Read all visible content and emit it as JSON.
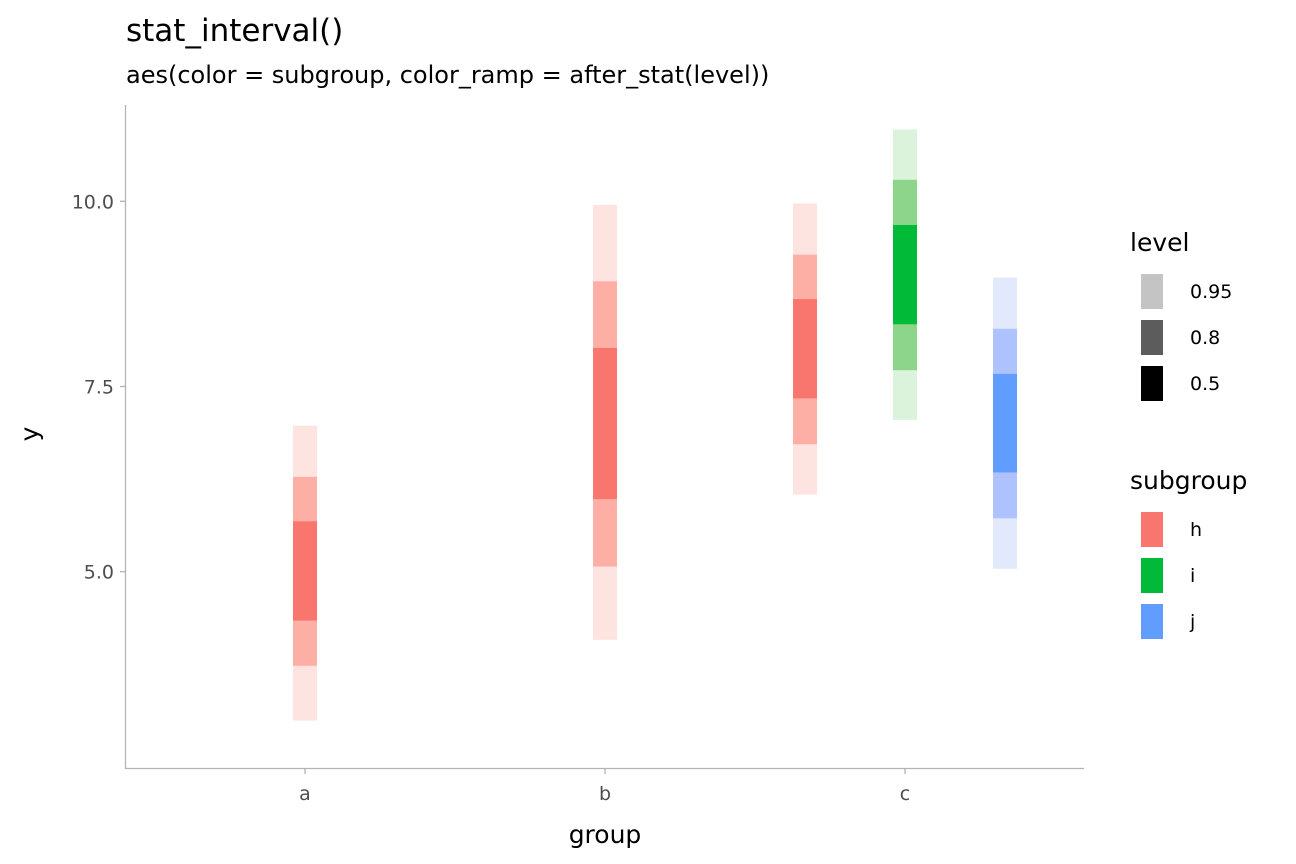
{
  "chart_data": {
    "type": "interval",
    "title": "stat_interval()",
    "subtitle": "aes(color = subgroup, color_ramp = after_stat(level))",
    "xlabel": "group",
    "ylabel": "y",
    "categories": [
      "a",
      "b",
      "c"
    ],
    "subgroups": [
      "h",
      "i",
      "j"
    ],
    "ylim": [
      2.35,
      11.3
    ],
    "yticks": [
      5.0,
      7.5,
      10.0
    ],
    "ytick_labels": [
      "5.0",
      "7.5",
      "10.0"
    ],
    "grid": false,
    "levels": [
      0.95,
      0.8,
      0.5
    ],
    "level_labels": [
      "0.95",
      "0.8",
      "0.5"
    ],
    "intervals": [
      {
        "group": "a",
        "subgroup": "h",
        "ranges": {
          "0.95": [
            2.99,
            6.97
          ],
          "0.8": [
            3.73,
            6.28
          ],
          "0.5": [
            4.34,
            5.68
          ]
        }
      },
      {
        "group": "b",
        "subgroup": "h",
        "ranges": {
          "0.95": [
            4.08,
            9.95
          ],
          "0.8": [
            5.07,
            8.92
          ],
          "0.5": [
            5.98,
            8.02
          ]
        }
      },
      {
        "group": "c",
        "subgroup": "h",
        "ranges": {
          "0.95": [
            6.04,
            9.97
          ],
          "0.8": [
            6.72,
            9.28
          ],
          "0.5": [
            7.34,
            8.68
          ]
        }
      },
      {
        "group": "c",
        "subgroup": "i",
        "ranges": {
          "0.95": [
            7.05,
            10.97
          ],
          "0.8": [
            7.72,
            10.29
          ],
          "0.5": [
            8.34,
            9.68
          ]
        }
      },
      {
        "group": "c",
        "subgroup": "j",
        "ranges": {
          "0.95": [
            5.04,
            8.97
          ],
          "0.8": [
            5.72,
            8.28
          ],
          "0.5": [
            6.34,
            7.67
          ]
        }
      }
    ],
    "legend": {
      "placement": "right",
      "level": {
        "title": "level",
        "entries": [
          "0.95",
          "0.8",
          "0.5"
        ],
        "colors": [
          "#c4c4c4",
          "#5c5c5c",
          "#000000"
        ]
      },
      "subgroup": {
        "title": "subgroup",
        "entries": [
          "h",
          "i",
          "j"
        ],
        "colors": [
          "#f8766d",
          "#00ba38",
          "#619cff"
        ]
      }
    },
    "colors": {
      "h": {
        "0.95": "#fee4e1",
        "0.8": "#fdaea5",
        "0.5": "#f8766d"
      },
      "i": {
        "0.95": "#dbf2db",
        "0.8": "#8dd58b",
        "0.5": "#00ba38"
      },
      "j": {
        "0.95": "#e3e9fd",
        "0.8": "#aec2fd",
        "0.5": "#619cff"
      }
    }
  }
}
